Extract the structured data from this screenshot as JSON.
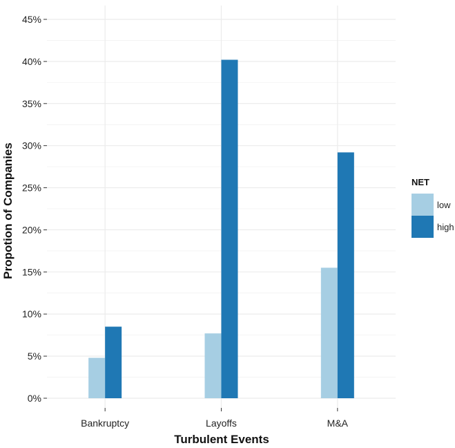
{
  "chart_data": {
    "type": "bar",
    "title": "",
    "xlabel": "Turbulent Events",
    "ylabel": "Propotion of Companies",
    "categories": [
      "Bankruptcy",
      "Layoffs",
      "M&A"
    ],
    "series": [
      {
        "name": "low",
        "values": [
          0.048,
          0.077,
          0.155
        ],
        "color": "#a6cee3"
      },
      {
        "name": "high",
        "values": [
          0.085,
          0.402,
          0.292
        ],
        "color": "#1f78b4"
      }
    ],
    "ylim": [
      0,
      0.45
    ],
    "yticks": [
      0,
      0.05,
      0.1,
      0.15,
      0.2,
      0.25,
      0.3,
      0.35,
      0.4,
      0.45
    ],
    "ytick_labels": [
      "0%",
      "5%",
      "10%",
      "15%",
      "20%",
      "25%",
      "30%",
      "35%",
      "40%",
      "45%"
    ],
    "grid": true,
    "legend": {
      "title": "NET",
      "placement": "right"
    },
    "colors": {
      "grid": "#ebebeb",
      "axis_text": "#222222"
    }
  }
}
